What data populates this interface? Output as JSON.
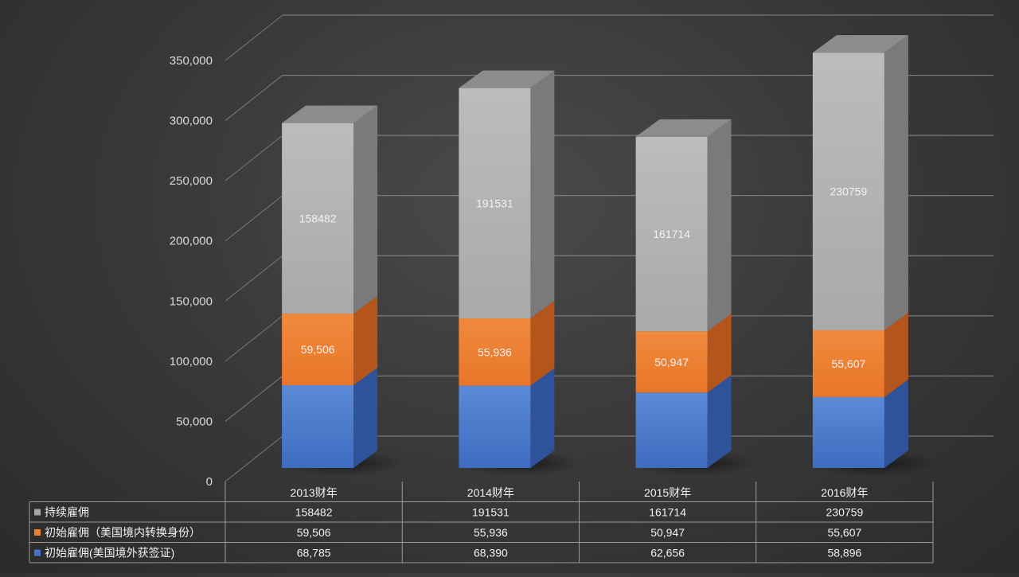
{
  "chart_data": {
    "type": "bar",
    "stacked": true,
    "three_d": true,
    "categories": [
      "2013财年",
      "2014财年",
      "2015财年",
      "2016财年"
    ],
    "series": [
      {
        "name": "初始雇佣(美国境外获签证)",
        "values": [
          68785,
          68390,
          62656,
          58896
        ],
        "labels": [
          "68,785",
          "68,390",
          "62,656",
          "58,896"
        ],
        "color": "#4472c4",
        "show_data_labels": false
      },
      {
        "name": "初始雇佣（美国境内转换身份）",
        "values": [
          59506,
          55936,
          50947,
          55607
        ],
        "labels": [
          "59,506",
          "55,936",
          "50,947",
          "55,607"
        ],
        "color": "#ed7d31",
        "show_data_labels": true
      },
      {
        "name": "持续雇佣",
        "values": [
          158482,
          191531,
          161714,
          230759
        ],
        "labels": [
          "158482",
          "191531",
          "161714",
          "230759"
        ],
        "color": "#a5a5a5",
        "show_data_labels": true
      }
    ],
    "ylim": [
      0,
      350000
    ],
    "y_ticks": [
      "0",
      "50,000",
      "100,000",
      "150,000",
      "200,000",
      "250,000",
      "300,000",
      "350,000"
    ],
    "y_tick_values": [
      0,
      50000,
      100000,
      150000,
      200000,
      250000,
      300000,
      350000
    ],
    "grid": true,
    "legend": "data-table-below",
    "title": "",
    "xlabel": "",
    "ylabel": "",
    "data_table": {
      "row_order": [
        2,
        1,
        0
      ]
    }
  }
}
